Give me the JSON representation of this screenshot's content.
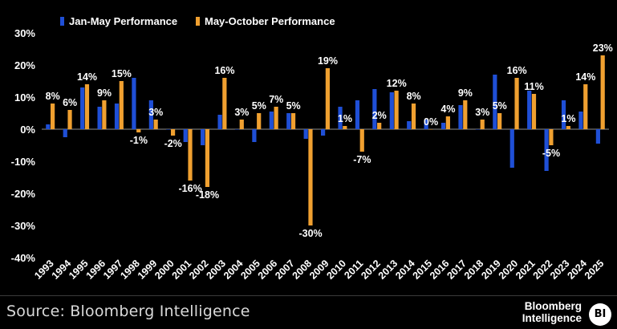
{
  "chart_data": {
    "type": "bar",
    "categories": [
      "1993",
      "1994",
      "1995",
      "1996",
      "1997",
      "1998",
      "1999",
      "2000",
      "2001",
      "2002",
      "2003",
      "2004",
      "2005",
      "2006",
      "2007",
      "2008",
      "2009",
      "2010",
      "2011",
      "2012",
      "2013",
      "2014",
      "2015",
      "2016",
      "2017",
      "2018",
      "2019",
      "2020",
      "2021",
      "2022",
      "2023",
      "2024",
      "2025"
    ],
    "series": [
      {
        "name": "Jan-May Performance",
        "color": "#1f4fd6",
        "values": [
          1.5,
          -2.5,
          13,
          7,
          8,
          16,
          9,
          0,
          -4,
          -5,
          4.5,
          0,
          -4,
          5.5,
          5,
          -3,
          -2,
          7,
          9,
          12.5,
          11.5,
          2.5,
          3,
          2,
          7.5,
          0,
          17,
          -12,
          12,
          -13,
          9,
          5.5,
          -4.5
        ]
      },
      {
        "name": "May-October Performance",
        "color": "#f0a030",
        "values": [
          8,
          6,
          14,
          9,
          15,
          -1,
          3,
          -2,
          -16,
          -18,
          16,
          3,
          5,
          7,
          5,
          -30,
          19,
          1,
          -7,
          2,
          12,
          8,
          0,
          4,
          9,
          3,
          5,
          16,
          11,
          -5,
          1,
          14,
          23
        ]
      }
    ],
    "data_labels": [
      "8%",
      "6%",
      "14%",
      "9%",
      "15%",
      "-1%",
      "3%",
      "-2%",
      "-16%",
      "-18%",
      "16%",
      "3%",
      "5%",
      "7%",
      "5%",
      "-30%",
      "19%",
      "1%",
      "-7%",
      "2%",
      "12%",
      "8%",
      "0%",
      "4%",
      "9%",
      "3%",
      "5%",
      "16%",
      "11%",
      "-5%",
      "1%",
      "14%",
      "23%"
    ],
    "ylim": [
      -40,
      30
    ],
    "yticks": [
      30,
      20,
      10,
      0,
      -10,
      -20,
      -30,
      -40
    ],
    "ytick_labels": [
      "30%",
      "20%",
      "10%",
      "0%",
      "-10%",
      "-20%",
      "-30%",
      "-40%"
    ],
    "legend_position": "top-left",
    "grid": false
  },
  "footer": {
    "source": "Source: Bloomberg Intelligence",
    "brand_line1": "Bloomberg",
    "brand_line2": "Intelligence",
    "logo_text": "BI"
  }
}
